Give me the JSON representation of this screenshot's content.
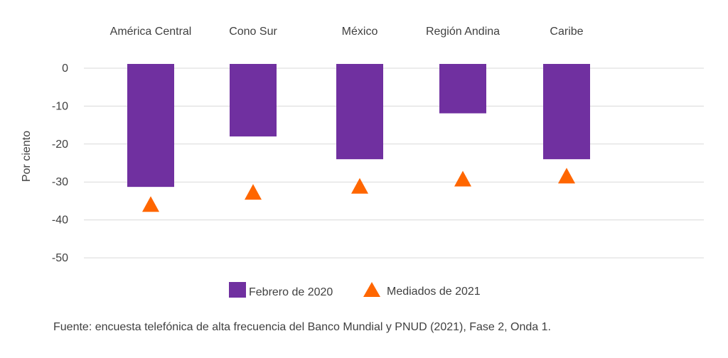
{
  "chart_data": {
    "type": "bar",
    "categories": [
      "América Central",
      "Cono Sur",
      "México",
      "Región Andina",
      "Caribe"
    ],
    "series": [
      {
        "name": "Febrero de 2020",
        "type": "bar",
        "color": "#7030A0",
        "values": [
          -31.3,
          -18.0,
          -24.0,
          -11.9,
          -24.0
        ]
      },
      {
        "name": "Mediados de 2021",
        "type": "marker",
        "marker": "triangle",
        "color": "#FF6600",
        "values": [
          -36.0,
          -32.8,
          -31.2,
          -29.3,
          -28.5
        ]
      }
    ],
    "ylabel": "Por ciento",
    "xlabel": "",
    "ylim": [
      -50,
      0
    ],
    "yticks": [
      0,
      -10,
      -20,
      -30,
      -40,
      -50
    ],
    "grid": true,
    "category_labels_position": "top",
    "legend_position": "bottom"
  },
  "source": "Fuente: encuesta telefónica de alta frecuencia del Banco Mundial y PNUD (2021), Fase 2, Onda 1."
}
